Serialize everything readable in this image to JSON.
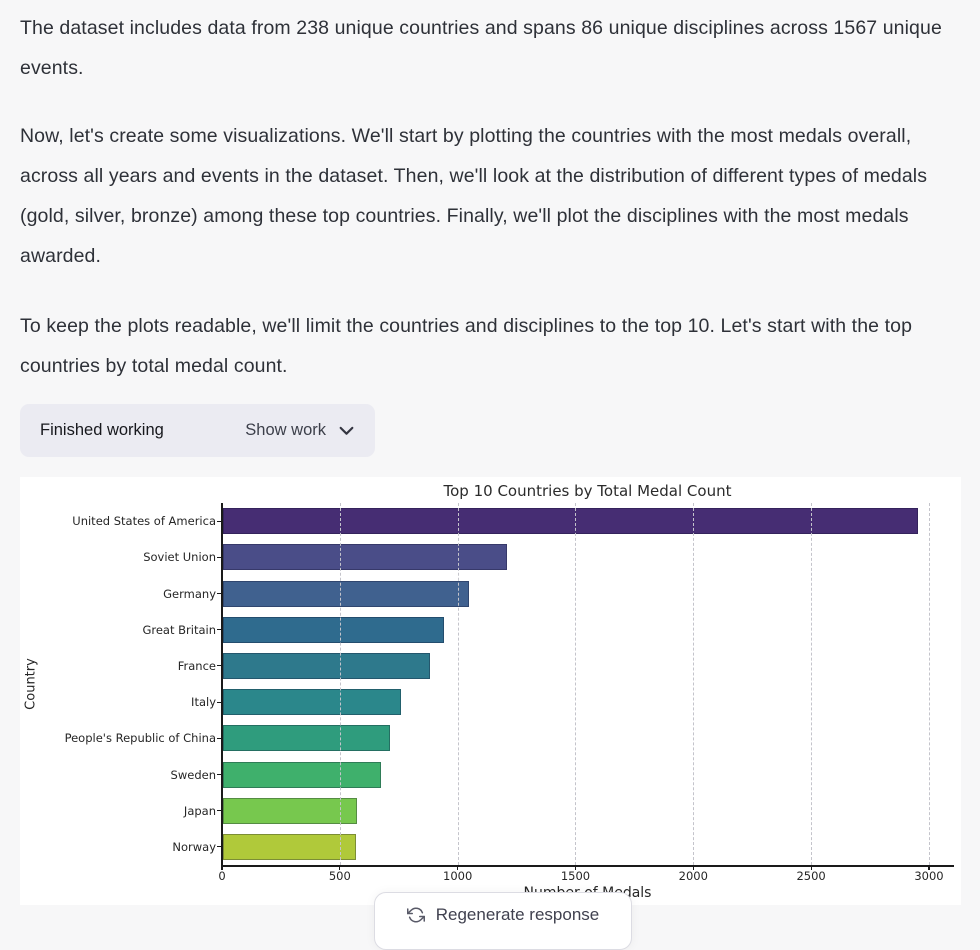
{
  "message": {
    "paragraphs": [
      "The dataset includes data from 238 unique countries and spans 86 unique disciplines across 1567 unique events.",
      "Now, let's create some visualizations. We'll start by plotting the countries with the most medals overall, across all years and events in the dataset. Then, we'll look at the distribution of different types of medals (gold, silver, bronze) among these top countries. Finally, we'll plot the disciplines with the most medals awarded.",
      "To keep the plots readable, we'll limit the countries and disciplines to the top 10. Let's start with the top countries by total medal count."
    ]
  },
  "work_widget": {
    "status": "Finished working",
    "toggle_label": "Show work",
    "toggle_icon": "chevron-down-icon",
    "background": "#ebebf2"
  },
  "chart_data": {
    "type": "bar",
    "orientation": "horizontal",
    "title": "Top 10 Countries by Total Medal Count",
    "xlabel": "Number of Medals",
    "ylabel": "Country",
    "categories": [
      "United States of America",
      "Soviet Union",
      "Germany",
      "Great Britain",
      "France",
      "Italy",
      "People's Republic of China",
      "Sweden",
      "Japan",
      "Norway"
    ],
    "values": [
      2950,
      1204,
      1045,
      940,
      880,
      755,
      710,
      670,
      570,
      565
    ],
    "xlim": [
      0,
      3102
    ],
    "xticks": [
      0,
      500,
      1000,
      1500,
      2000,
      2500,
      3000
    ],
    "grid": "x-axis dashed, drawn over bars",
    "legend": "none",
    "colors": [
      "#462d73",
      "#4a4d88",
      "#40618f",
      "#2f6b8e",
      "#2e798c",
      "#2b878b",
      "#2f9c7d",
      "#3fb06c",
      "#77c84e",
      "#b0c93a"
    ]
  },
  "regenerate": {
    "label": "Regenerate response",
    "icon": "regenerate-icon"
  }
}
